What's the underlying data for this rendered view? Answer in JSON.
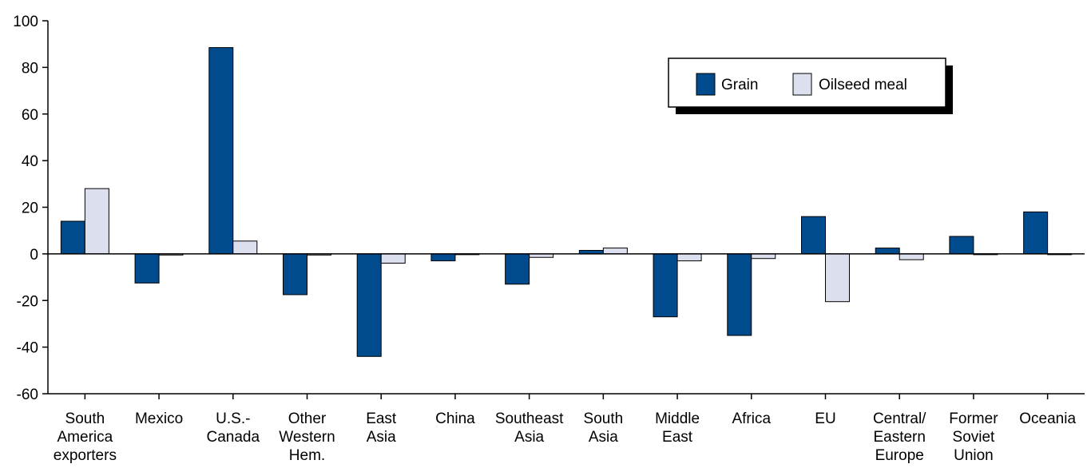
{
  "chart_data": {
    "type": "bar",
    "categories": [
      [
        "South",
        "America",
        "exporters"
      ],
      [
        "Mexico"
      ],
      [
        "U.S.-",
        "Canada"
      ],
      [
        "Other",
        "Western",
        "Hem."
      ],
      [
        "East",
        "Asia"
      ],
      [
        "China"
      ],
      [
        "Southeast",
        "Asia"
      ],
      [
        "South",
        "Asia"
      ],
      [
        "Middle",
        "East"
      ],
      [
        "Africa"
      ],
      [
        "EU"
      ],
      [
        "Central/",
        "Eastern",
        "Europe"
      ],
      [
        "Former",
        "Soviet",
        "Union"
      ],
      [
        "Oceania"
      ]
    ],
    "series": [
      {
        "name": "Grain",
        "color": "#004b8d",
        "values": [
          14,
          -12.5,
          88.5,
          -17.5,
          -44,
          -3,
          -13,
          1.5,
          -27,
          -35,
          16,
          2.5,
          7.5,
          18
        ]
      },
      {
        "name": "Oilseed meal",
        "color": "#dcdfee",
        "values": [
          28,
          -0.5,
          5.5,
          -0.5,
          -4,
          -0.3,
          -1.5,
          2.5,
          -3,
          -2,
          -20.5,
          -2.5,
          -0.3,
          -0.3
        ]
      }
    ],
    "ylim": [
      -60,
      100
    ],
    "yticks": [
      -60,
      -40,
      -20,
      0,
      20,
      40,
      60,
      80,
      100
    ],
    "ytick_labels": [
      "-60",
      "-40",
      "-20",
      "0",
      "20",
      "40",
      "60",
      "80",
      "100"
    ],
    "title": "",
    "xlabel": "",
    "ylabel": "",
    "grid": false,
    "legend_position": "top-right"
  }
}
